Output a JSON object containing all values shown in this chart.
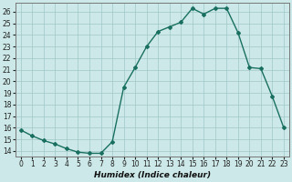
{
  "x": [
    0,
    1,
    2,
    3,
    4,
    5,
    6,
    7,
    8,
    9,
    10,
    11,
    12,
    13,
    14,
    15,
    16,
    17,
    18,
    19,
    20,
    21,
    22,
    23
  ],
  "y": [
    15.8,
    15.3,
    14.9,
    14.6,
    14.2,
    13.9,
    13.8,
    13.8,
    14.8,
    19.5,
    21.2,
    23.0,
    24.3,
    24.7,
    25.1,
    26.3,
    25.8,
    26.3,
    26.3,
    24.2,
    21.2,
    21.1,
    18.7,
    16.0
  ],
  "xlabel": "Humidex (Indice chaleur)",
  "xlim": [
    -0.5,
    23.5
  ],
  "ylim": [
    13.5,
    26.8
  ],
  "yticks": [
    14,
    15,
    16,
    17,
    18,
    19,
    20,
    21,
    22,
    23,
    24,
    25,
    26
  ],
  "xticks": [
    0,
    1,
    2,
    3,
    4,
    5,
    6,
    7,
    8,
    9,
    10,
    11,
    12,
    13,
    14,
    15,
    16,
    17,
    18,
    19,
    20,
    21,
    22,
    23
  ],
  "line_color": "#1a7060",
  "marker": "D",
  "marker_size": 2.0,
  "bg_color": "#cce8e8",
  "grid_color": "#a0c8c8",
  "linewidth": 1.0,
  "tick_fontsize": 5.5,
  "xlabel_fontsize": 6.5
}
